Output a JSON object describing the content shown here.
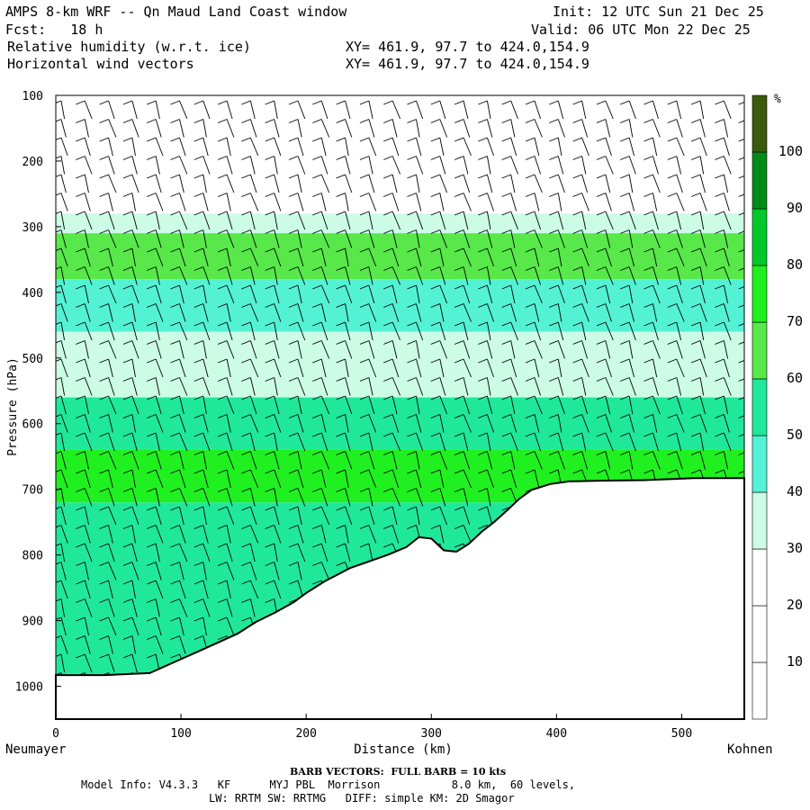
{
  "header": {
    "title": "AMPS 8-km WRF -- Qn Maud Land Coast window",
    "init": "Init: 12 UTC Sun 21 Dec 25",
    "fcst": "Fcst:   18 h",
    "valid": "Valid: 06 UTC Mon 22 Dec 25",
    "field1": "Relative humidity (w.r.t. ice)",
    "xy1": "XY= 461.9, 97.7 to 424.0,154.9",
    "field2": "Horizontal wind vectors",
    "xy2": "XY= 461.9, 97.7 to 424.0,154.9"
  },
  "footer": {
    "barb_note": "BARB VECTORS:  FULL BARB = 10 kts",
    "model_line1": "Model Info: V4.3.3   KF      MYJ PBL  Morrison           8.0 km,  60 levels,",
    "model_line2": "LW: RRTM SW: RRTMG   DIFF: simple KM: 2D Smagor"
  },
  "chart_data": {
    "type": "heatmap",
    "title": "Relative humidity (w.r.t. ice) cross-section with horizontal wind barbs",
    "xlabel": "Distance (km)",
    "ylabel": "Pressure (hPa)",
    "xlim": [
      0,
      550
    ],
    "ylim": [
      1050,
      100
    ],
    "x_ticks": [
      0,
      100,
      200,
      300,
      400,
      500
    ],
    "y_ticks": [
      100,
      200,
      300,
      400,
      500,
      600,
      700,
      800,
      900,
      1000
    ],
    "x_endpoint_labels": [
      "Neumayer",
      "Kohnen"
    ],
    "colorbar": {
      "unit": "%",
      "levels": [
        10,
        20,
        30,
        40,
        50,
        60,
        70,
        80,
        90,
        100
      ],
      "colors": [
        "#ffffff",
        "#ffffff",
        "#ffffff",
        "#ccfbe6",
        "#54f2d4",
        "#20e89b",
        "#58e84a",
        "#20f020",
        "#00c828",
        "#008a18",
        "#3a5a0c"
      ]
    },
    "terrain_pressure": {
      "distance_km": [
        0,
        40,
        75,
        95,
        115,
        130,
        145,
        160,
        175,
        190,
        200,
        215,
        235,
        250,
        265,
        280,
        290,
        300,
        310,
        320,
        330,
        340,
        350,
        360,
        370,
        380,
        395,
        410,
        430,
        470,
        510,
        550
      ],
      "pressure_hpa": [
        983,
        983,
        980,
        963,
        946,
        933,
        920,
        902,
        888,
        872,
        858,
        840,
        820,
        810,
        800,
        788,
        773,
        775,
        793,
        795,
        783,
        765,
        750,
        733,
        715,
        701,
        692,
        688,
        687,
        686,
        683,
        683
      ]
    },
    "rh_layers": [
      {
        "p_top": 100,
        "p_bottom": 280,
        "rh": 10
      },
      {
        "p_top": 280,
        "p_bottom": 310,
        "rh": 35
      },
      {
        "p_top": 310,
        "p_bottom": 380,
        "rh": 65
      },
      {
        "p_top": 380,
        "p_bottom": 460,
        "rh": 45
      },
      {
        "p_top": 460,
        "p_bottom": 560,
        "rh": 35
      },
      {
        "p_top": 560,
        "p_bottom": 640,
        "rh": 55
      },
      {
        "p_top": 640,
        "p_bottom": 720,
        "rh": 75
      },
      {
        "p_top": 720,
        "p_bottom": 1000,
        "rh": 55
      }
    ]
  }
}
